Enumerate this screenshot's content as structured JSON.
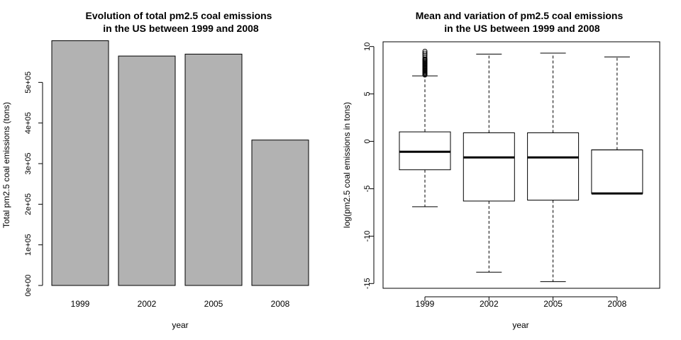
{
  "chart_data": [
    {
      "type": "bar",
      "title_lines": [
        "Evolution of total pm2.5 coal emissions",
        "in the US between 1999 and 2008"
      ],
      "xlabel": "year",
      "ylabel": "Total pm2.5 coal emissions (tons)",
      "categories": [
        "1999",
        "2002",
        "2005",
        "2008"
      ],
      "values": [
        602624,
        564940,
        569654,
        358084
      ],
      "ylim": [
        0,
        600000
      ],
      "yticks": [
        0,
        100000,
        200000,
        300000,
        400000,
        500000
      ],
      "ytick_labels": [
        "0e+00",
        "1e+05",
        "2e+05",
        "3e+05",
        "4e+05",
        "5e+05"
      ],
      "bar_color": "#b2b2b2",
      "grid": false
    },
    {
      "type": "boxplot",
      "title_lines": [
        "Mean and variation of pm2.5 coal emissions",
        "in the US between 1999 and 2008"
      ],
      "xlabel": "year",
      "ylabel": "log(pm2.5 coal emissions in tons)",
      "categories": [
        "1999",
        "2002",
        "2005",
        "2008"
      ],
      "ylim": [
        -15.5,
        10.5
      ],
      "yticks": [
        -15,
        -10,
        -5,
        0,
        5,
        10
      ],
      "ytick_labels": [
        "-15",
        "-10",
        "-5",
        "0",
        "5",
        "10"
      ],
      "boxes": [
        {
          "lower_whisker": -6.9,
          "q1": -3.0,
          "median": -1.1,
          "q3": 1.0,
          "upper_whisker": 6.9,
          "outliers": [
            7.0,
            7.1,
            7.2,
            7.3,
            7.4,
            7.5,
            7.6,
            7.7,
            7.8,
            7.9,
            8.0,
            8.1,
            8.2,
            8.3,
            8.4,
            8.5,
            8.6,
            8.7,
            8.9,
            9.1,
            9.3,
            9.5
          ]
        },
        {
          "lower_whisker": -13.8,
          "q1": -6.3,
          "median": -1.7,
          "q3": 0.9,
          "upper_whisker": 9.2,
          "outliers": []
        },
        {
          "lower_whisker": -14.8,
          "q1": -6.2,
          "median": -1.7,
          "q3": 0.9,
          "upper_whisker": 9.3,
          "outliers": []
        },
        {
          "lower_whisker": -5.5,
          "q1": -5.5,
          "median": -5.5,
          "q3": -0.9,
          "upper_whisker": 8.9,
          "outliers": []
        }
      ],
      "grid": false
    }
  ]
}
